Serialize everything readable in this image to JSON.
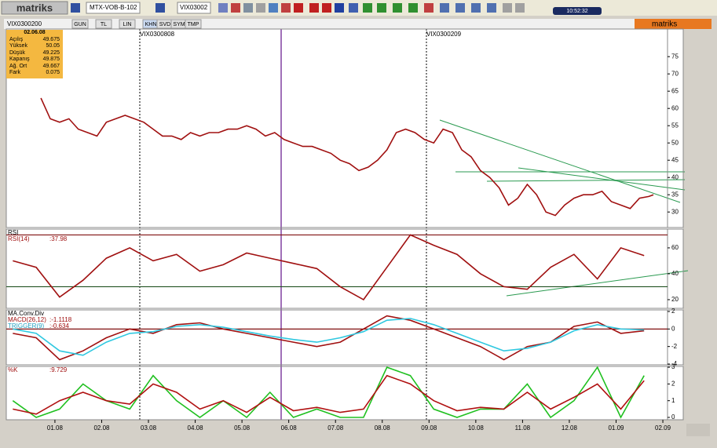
{
  "toolbar": {
    "logo": "matriks",
    "symbol": "MTX-VOB-B-102",
    "symbol2": "VIX03002",
    "clock": "10:52:32"
  },
  "tabs": {
    "active_symbol": "VIX0300200",
    "items": [
      "GUN",
      "TL",
      "LIN",
      "KHN",
      "SVD",
      "SYM",
      "TMP"
    ],
    "brand": "matriks"
  },
  "info_box": {
    "date": "02.06.08",
    "rows": [
      [
        "Açılış",
        "49.675"
      ],
      [
        "Yüksek",
        "50.05"
      ],
      [
        "Düşük",
        "49.225"
      ],
      [
        "Kapanış",
        "49.875"
      ],
      [
        "Ağ. Ort",
        "49.667"
      ],
      [
        "Fark",
        "0.075"
      ]
    ]
  },
  "annotations": [
    "VIX0300808",
    "VIX0300209"
  ],
  "chart_data": [
    {
      "type": "line",
      "xlim": [
        -1.04,
        13.1
      ],
      "ylim": [
        25.5,
        83
      ],
      "yticks": [
        30,
        35,
        40,
        45,
        50,
        55,
        60,
        65,
        70,
        75
      ],
      "series": [
        {
          "color": "#a01010",
          "x": [
            -0.3,
            -0.1,
            0.1,
            0.3,
            0.5,
            0.7,
            0.9,
            1.1,
            1.3,
            1.5,
            1.7,
            1.9,
            2.1,
            2.3,
            2.5,
            2.7,
            2.9,
            3.1,
            3.3,
            3.5,
            3.7,
            3.9,
            4.1,
            4.3,
            4.5,
            4.7,
            4.9,
            5.1,
            5.3,
            5.5,
            5.7,
            5.9,
            6.1,
            6.3,
            6.5,
            6.7,
            6.9,
            7.1,
            7.3,
            7.5,
            7.7,
            7.9,
            8.1,
            8.3,
            8.5,
            8.7,
            8.9,
            9.1,
            9.3,
            9.5,
            9.7,
            9.9,
            10.1,
            10.3,
            10.5,
            10.7,
            10.9,
            11.1,
            11.3,
            11.5,
            11.7,
            11.9,
            12.1,
            12.3,
            12.5,
            12.7,
            12.8
          ],
          "values": [
            63,
            57,
            56,
            57,
            54,
            53,
            52,
            56,
            57,
            58,
            57,
            56,
            54,
            52,
            52,
            51,
            53,
            52,
            53,
            53,
            54,
            54,
            55,
            54,
            52,
            53,
            51,
            50,
            49,
            49,
            48,
            47,
            45,
            44,
            42,
            43,
            45,
            48,
            53,
            54,
            53,
            51,
            50,
            54,
            53,
            48,
            46,
            42,
            40,
            37,
            32,
            34,
            38,
            35,
            30,
            29,
            32,
            34,
            35,
            35,
            36,
            33,
            32,
            31,
            34,
            34.5,
            35
          ]
        }
      ]
    },
    {
      "type": "line",
      "title": "RSI",
      "xlim": [
        -1.04,
        13.1
      ],
      "ylim": [
        13.3,
        74.5
      ],
      "yticks": [
        20,
        40,
        60
      ],
      "hlines": [
        70,
        30
      ],
      "series": [
        {
          "name": "RSI(14)",
          "value_label": ":37.98",
          "color": "#a01010",
          "x": [
            -0.9,
            -0.4,
            0.1,
            0.6,
            1.1,
            1.6,
            2.1,
            2.6,
            3.1,
            3.6,
            4.1,
            4.6,
            5.1,
            5.6,
            6.1,
            6.6,
            7.1,
            7.6,
            8.1,
            8.6,
            9.1,
            9.6,
            10.1,
            10.6,
            11.1,
            11.6,
            12.1,
            12.6
          ],
          "values": [
            50,
            45,
            22,
            35,
            52,
            60,
            50,
            55,
            42,
            47,
            56,
            52,
            48,
            44,
            30,
            20,
            45,
            70,
            62,
            55,
            40,
            30,
            28,
            45,
            55,
            36,
            60,
            54
          ]
        }
      ]
    },
    {
      "type": "line",
      "title": "MA.Conv.Div",
      "xlim": [
        -1.04,
        13.1
      ],
      "ylim": [
        -4.09,
        2.18
      ],
      "yticks": [
        -4,
        -2,
        0,
        2
      ],
      "hlines": [
        0
      ],
      "series": [
        {
          "name": "MACD(26,12)",
          "value_label": ":-1.1118",
          "color": "#a01010",
          "x": [
            -0.9,
            -0.4,
            0.1,
            0.6,
            1.1,
            1.6,
            2.1,
            2.6,
            3.1,
            3.6,
            4.1,
            4.6,
            5.1,
            5.6,
            6.1,
            6.6,
            7.1,
            7.6,
            8.1,
            8.6,
            9.1,
            9.6,
            10.1,
            10.6,
            11.1,
            11.6,
            12.1,
            12.6
          ],
          "values": [
            -0.5,
            -1,
            -3.5,
            -2.5,
            -1,
            0,
            -0.5,
            0.5,
            0.7,
            0,
            -0.5,
            -1,
            -1.5,
            -2,
            -1.5,
            0,
            1.5,
            1,
            0,
            -1,
            -2,
            -3.5,
            -2,
            -1.5,
            0.3,
            0.8,
            -0.5,
            -0.2
          ]
        },
        {
          "name": "TRIGGER(9)",
          "value_label": ":-0.634",
          "color": "#30c8e0",
          "x": [
            -0.9,
            -0.4,
            0.1,
            0.6,
            1.1,
            1.6,
            2.1,
            2.6,
            3.1,
            3.6,
            4.1,
            4.6,
            5.1,
            5.6,
            6.1,
            6.6,
            7.1,
            7.6,
            8.1,
            8.6,
            9.1,
            9.6,
            10.1,
            10.6,
            11.1,
            11.6,
            12.1,
            12.6
          ],
          "values": [
            0,
            -0.5,
            -2.5,
            -3,
            -1.5,
            -0.5,
            -0.3,
            0.3,
            0.5,
            0.2,
            -0.3,
            -0.8,
            -1.2,
            -1.5,
            -1,
            -0.3,
            1,
            1.2,
            0.5,
            -0.5,
            -1.5,
            -2.5,
            -2.2,
            -1.5,
            -0.2,
            0.5,
            0,
            -0.1
          ]
        }
      ]
    },
    {
      "type": "line",
      "xlim": [
        -1.04,
        13.1
      ],
      "ylim": [
        -0.14,
        3.05
      ],
      "yticks": [
        0,
        1,
        2,
        3
      ],
      "xticks": [
        {
          "value": 0,
          "label": "01.08"
        },
        {
          "value": 1,
          "label": "02.08"
        },
        {
          "value": 2,
          "label": "03.08"
        },
        {
          "value": 3,
          "label": "04.08"
        },
        {
          "value": 4,
          "label": "05.08"
        },
        {
          "value": 5,
          "label": "06.08"
        },
        {
          "value": 6,
          "label": "07.08"
        },
        {
          "value": 7,
          "label": "08.08"
        },
        {
          "value": 8,
          "label": "09.08"
        },
        {
          "value": 9,
          "label": "10.08"
        },
        {
          "value": 10,
          "label": "11.08"
        },
        {
          "value": 11,
          "label": "12.08"
        },
        {
          "value": 12,
          "label": "01.09"
        },
        {
          "value": 13,
          "label": "02.09"
        }
      ],
      "series": [
        {
          "color": "#20c020",
          "x": [
            -0.9,
            -0.4,
            0.1,
            0.6,
            1.1,
            1.6,
            2.1,
            2.6,
            3.1,
            3.6,
            4.1,
            4.6,
            5.1,
            5.6,
            6.1,
            6.6,
            7.1,
            7.6,
            8.1,
            8.6,
            9.1,
            9.6,
            10.1,
            10.6,
            11.1,
            11.6,
            12.1,
            12.6
          ],
          "values": [
            1,
            0,
            0.5,
            2,
            1,
            0.5,
            2.5,
            1,
            0,
            1,
            0,
            1.5,
            0,
            0.5,
            0,
            0,
            3,
            2.5,
            0.5,
            0,
            0.5,
            0.5,
            2,
            0,
            1,
            3,
            0,
            2.5
          ]
        },
        {
          "name": "%K",
          "value_label": ":9.729",
          "color": "#b01010",
          "x": [
            -0.9,
            -0.4,
            0.1,
            0.6,
            1.1,
            1.6,
            2.1,
            2.6,
            3.1,
            3.6,
            4.1,
            4.6,
            5.1,
            5.6,
            6.1,
            6.6,
            7.1,
            7.6,
            8.1,
            8.6,
            9.1,
            9.6,
            10.1,
            10.6,
            11.1,
            11.6,
            12.1,
            12.6
          ],
          "values": [
            0.5,
            0.2,
            1,
            1.5,
            1,
            0.8,
            2,
            1.5,
            0.5,
            1,
            0.3,
            1.2,
            0.4,
            0.6,
            0.3,
            0.5,
            2.5,
            2,
            1,
            0.4,
            0.6,
            0.5,
            1.5,
            0.5,
            1.2,
            2,
            0.5,
            2.2
          ]
        }
      ]
    }
  ]
}
